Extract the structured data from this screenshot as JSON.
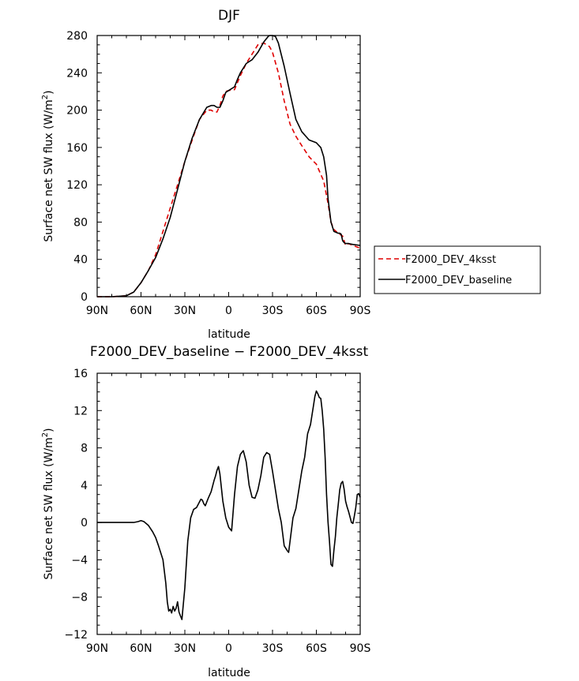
{
  "chart_data": [
    {
      "type": "line",
      "title": "DJF",
      "xlabel": "latitude",
      "ylabel": "Surface net SW flux (W/m",
      "ylabel_sup": "2",
      "ylabel_close": ")",
      "xlim": [
        90,
        -90
      ],
      "ylim": [
        0,
        280
      ],
      "xticks": [
        90,
        60,
        30,
        0,
        -30,
        -60,
        -90
      ],
      "xtick_labels": [
        "90N",
        "60N",
        "30N",
        "0",
        "30S",
        "60S",
        "90S"
      ],
      "yticks": [
        0,
        40,
        80,
        120,
        160,
        200,
        240,
        280
      ],
      "yticks_labels": [
        "0",
        "40",
        "80",
        "120",
        "160",
        "200",
        "240",
        "280"
      ],
      "grid": false,
      "legend_position": "right",
      "series": [
        {
          "name": "F2000_DEV_4ksst",
          "color": "#e00000",
          "dash": "dashed",
          "x": [
            90,
            80,
            70,
            65,
            60,
            55,
            50,
            45,
            40,
            35,
            30,
            25,
            20,
            15,
            12,
            10,
            8,
            6,
            4,
            2,
            0,
            -4,
            -8,
            -12,
            -16,
            -20,
            -24,
            -28,
            -30,
            -34,
            -38,
            -42,
            -46,
            -50,
            -55,
            -60,
            -65,
            -68,
            -70,
            -72,
            -75,
            -78,
            -80,
            -82,
            -85,
            -90
          ],
          "values": [
            0,
            0,
            1,
            5,
            15,
            28,
            45,
            70,
            95,
            120,
            145,
            168,
            190,
            200,
            200,
            198,
            198,
            205,
            215,
            220,
            221,
            222,
            237,
            250,
            260,
            270,
            272,
            268,
            262,
            240,
            210,
            185,
            172,
            162,
            150,
            142,
            124,
            100,
            80,
            72,
            68,
            65,
            55,
            57,
            55,
            52
          ]
        },
        {
          "name": "F2000_DEV_baseline",
          "color": "#000000",
          "dash": "solid",
          "x": [
            90,
            80,
            70,
            65,
            60,
            55,
            50,
            45,
            40,
            35,
            30,
            25,
            20,
            15,
            12,
            10,
            8,
            6,
            4,
            2,
            0,
            -4,
            -6,
            -8,
            -12,
            -16,
            -20,
            -24,
            -27,
            -28,
            -30,
            -32,
            -34,
            -38,
            -42,
            -46,
            -50,
            -55,
            -60,
            -63,
            -65,
            -67,
            -68,
            -70,
            -72,
            -75,
            -76,
            -77,
            -78,
            -79,
            -80,
            -82,
            -85,
            -90
          ],
          "values": [
            0,
            0,
            1,
            5,
            15,
            28,
            42,
            62,
            85,
            115,
            145,
            170,
            190,
            203,
            205,
            205,
            203,
            203,
            210,
            219,
            221,
            225,
            233,
            240,
            250,
            254,
            262,
            273,
            279,
            280,
            280,
            279,
            272,
            247,
            218,
            190,
            177,
            168,
            165,
            160,
            150,
            130,
            105,
            80,
            70,
            68,
            68,
            67,
            60,
            58,
            57,
            57,
            56,
            55
          ]
        }
      ]
    },
    {
      "type": "line",
      "title": "F2000_DEV_baseline − F2000_DEV_4ksst",
      "xlabel": "latitude",
      "ylabel": "Surface net SW flux (W/m",
      "ylabel_sup": "2",
      "ylabel_close": ")",
      "xlim": [
        90,
        -90
      ],
      "ylim": [
        -12,
        16
      ],
      "xticks": [
        90,
        60,
        30,
        0,
        -30,
        -60,
        -90
      ],
      "xtick_labels": [
        "90N",
        "60N",
        "30N",
        "0",
        "30S",
        "60S",
        "90S"
      ],
      "yticks": [
        -12,
        -8,
        -4,
        0,
        4,
        8,
        12,
        16
      ],
      "yticks_labels": [
        "−12",
        "−8",
        "−4",
        "0",
        "4",
        "8",
        "12",
        "16"
      ],
      "grid": false,
      "series": [
        {
          "name": "",
          "color": "#000000",
          "dash": "solid",
          "x": [
            90,
            80,
            70,
            65,
            62,
            60,
            58,
            55,
            52,
            50,
            48,
            45,
            43,
            42,
            41,
            40,
            39,
            38,
            37,
            36,
            35,
            34,
            33,
            32,
            30,
            28,
            26,
            24,
            22,
            20,
            19,
            18,
            17,
            16,
            14,
            12,
            10,
            9,
            8,
            7,
            6,
            4,
            2,
            0,
            -2,
            -4,
            -6,
            -8,
            -10,
            -12,
            -14,
            -16,
            -18,
            -20,
            -22,
            -24,
            -26,
            -28,
            -30,
            -32,
            -34,
            -36,
            -38,
            -40,
            -41,
            -42,
            -44,
            -46,
            -48,
            -50,
            -52,
            -54,
            -56,
            -58,
            -59,
            -60,
            -61,
            -62,
            -63,
            -64,
            -65,
            -66,
            -67,
            -68,
            -69,
            -70,
            -71,
            -72,
            -73,
            -74,
            -75,
            -76,
            -77,
            -78,
            -79,
            -80,
            -81,
            -82,
            -83,
            -84,
            -85,
            -86,
            -87,
            -88,
            -89,
            -90
          ],
          "values": [
            0,
            0,
            0,
            0,
            0.1,
            0.2,
            0.1,
            -0.3,
            -1,
            -1.6,
            -2.5,
            -4,
            -6.5,
            -8.5,
            -9.5,
            -9.3,
            -9.7,
            -9,
            -9.5,
            -9.2,
            -8.5,
            -9.6,
            -10,
            -10.4,
            -7,
            -2,
            0.5,
            1.4,
            1.6,
            2.2,
            2.5,
            2.4,
            2.0,
            1.8,
            2.6,
            3.3,
            4.5,
            5,
            5.6,
            6.0,
            5.2,
            2.3,
            0.5,
            -0.5,
            -0.9,
            3,
            6,
            7.3,
            7.7,
            6.5,
            4,
            2.7,
            2.6,
            3.5,
            5,
            7,
            7.5,
            7.3,
            5.5,
            3.5,
            1.5,
            0,
            -2.5,
            -3.0,
            -3.2,
            -2,
            0.5,
            1.5,
            3.5,
            5.5,
            7,
            9.5,
            10.5,
            12.5,
            13.5,
            14.1,
            13.8,
            13.4,
            13.3,
            12,
            10,
            7,
            3,
            0,
            -2,
            -4.5,
            -4.7,
            -3,
            -1.5,
            0.5,
            2,
            3.5,
            4.2,
            4.4,
            3.6,
            2.3,
            1.7,
            1.2,
            0.6,
            0,
            -0.1,
            0.7,
            1.6,
            3.0,
            3.1,
            2.7
          ]
        }
      ]
    }
  ]
}
